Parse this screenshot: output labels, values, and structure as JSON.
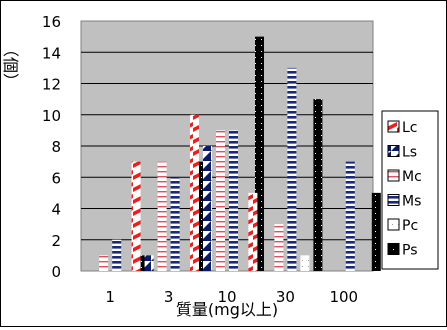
{
  "chart_data": {
    "type": "bar",
    "categories": [
      "1",
      "3",
      "10",
      "30",
      "100"
    ],
    "series": [
      {
        "name": "Lc",
        "values": [
          0,
          7,
          10,
          5,
          0
        ],
        "color": "#e8211e",
        "pattern": "diagonal-stripes-red"
      },
      {
        "name": "Ls",
        "values": [
          0,
          1,
          8,
          0,
          0
        ],
        "color": "#0a1a66",
        "pattern": "dark-navy-diagonal"
      },
      {
        "name": "Mc",
        "values": [
          1,
          7,
          9,
          3,
          0
        ],
        "color": "#e05060",
        "pattern": "horizontal-lines-pink"
      },
      {
        "name": "Ms",
        "values": [
          2,
          6,
          9,
          13,
          7
        ],
        "color": "#1a2a7a",
        "pattern": "horizontal-lines-navy"
      },
      {
        "name": "Pc",
        "values": [
          0,
          0,
          0,
          1,
          0
        ],
        "color": "#ffffff",
        "pattern": "white-dotted"
      },
      {
        "name": "Ps",
        "values": [
          1,
          7,
          15,
          11,
          5
        ],
        "color": "#000000",
        "pattern": "black-dotted"
      }
    ],
    "xlabel": "質量(mg以上)",
    "ylabel": "（個）",
    "ylim": [
      0,
      16
    ],
    "yticks": [
      0,
      2,
      4,
      6,
      8,
      10,
      12,
      14,
      16
    ],
    "grid": true,
    "legend_position": "right",
    "plot_background": "#c0c0c0"
  }
}
